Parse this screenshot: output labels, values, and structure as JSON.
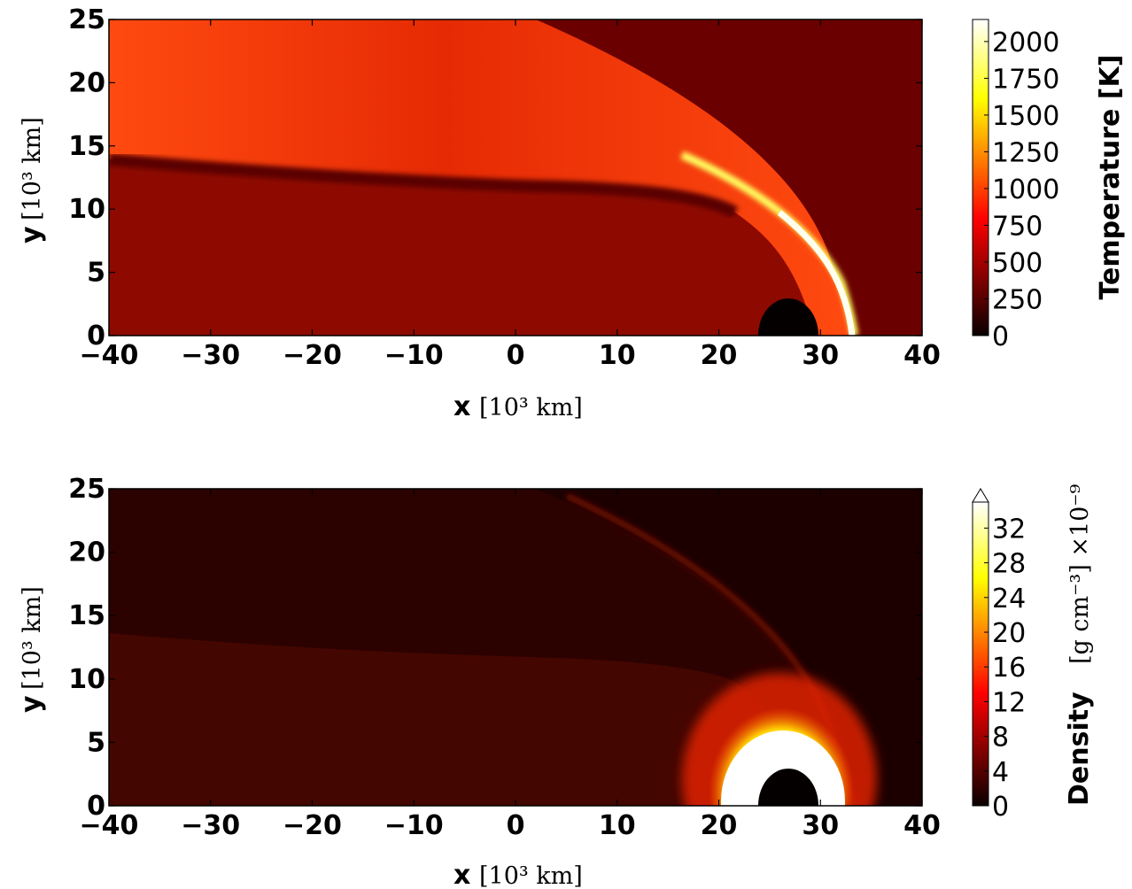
{
  "chart_data": [
    {
      "type": "heatmap",
      "quantity": "Temperature",
      "xlabel": {
        "var": "x",
        "unit": "[10³ km]"
      },
      "ylabel": {
        "var": "y",
        "unit": "[10³ km]"
      },
      "xlim": [
        -40,
        40
      ],
      "ylim": [
        0,
        25
      ],
      "xticks": [
        "−40",
        "−30",
        "−20",
        "−10",
        "0",
        "10",
        "20",
        "30",
        "40"
      ],
      "yticks": [
        "0",
        "5",
        "10",
        "15",
        "20",
        "25"
      ],
      "colorbar": {
        "label": "Temperature [K]",
        "range": [
          0,
          2150
        ],
        "ticks": [
          "0",
          "250",
          "500",
          "750",
          "1000",
          "1250",
          "1500",
          "1750",
          "2000"
        ],
        "colormap": "hot"
      },
      "features": {
        "background_temperature_K": 280,
        "hot_wedge_temperature_K": 700,
        "shock_peak_temperature_K": 2100,
        "bow_shock_nose_x": 33.5,
        "body_center_x": 27,
        "body_radius": 3
      }
    },
    {
      "type": "heatmap",
      "quantity": "Density",
      "xlabel": {
        "var": "x",
        "unit": "[10³ km]"
      },
      "ylabel": {
        "var": "y",
        "unit": "[10³ km]"
      },
      "xlim": [
        -40,
        40
      ],
      "ylim": [
        0,
        25
      ],
      "xticks": [
        "−40",
        "−30",
        "−20",
        "−10",
        "0",
        "10",
        "20",
        "30",
        "40"
      ],
      "yticks": [
        "0",
        "5",
        "10",
        "15",
        "20",
        "25"
      ],
      "colorbar": {
        "label": "Density",
        "unit": "[g cm⁻³] ×10⁻⁹",
        "range": [
          0,
          35
        ],
        "ticks": [
          "0",
          "4",
          "8",
          "12",
          "16",
          "20",
          "24",
          "28",
          "32"
        ],
        "extend": "max",
        "colormap": "hot"
      },
      "features": {
        "background_density": 1.5,
        "post_shock_density": 4,
        "dense_shell_peak_density": 35,
        "bow_shock_nose_x": 33.5,
        "body_center_x": 27,
        "body_radius": 3
      }
    }
  ]
}
